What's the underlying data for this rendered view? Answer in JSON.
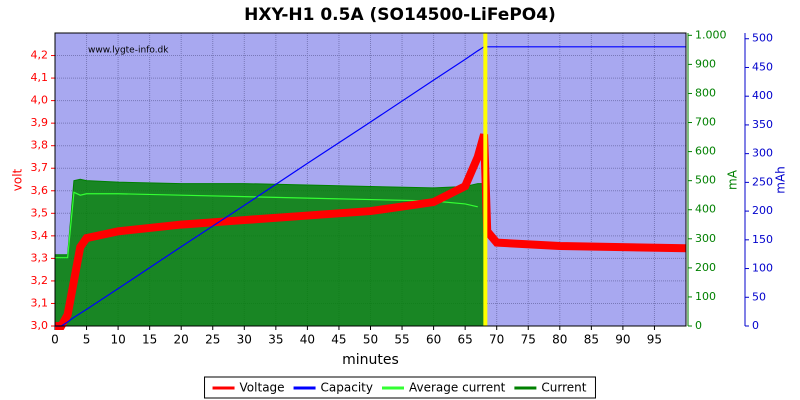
{
  "chart_data": {
    "type": "line",
    "title": "HXY-H1 0.5A (SO14500-LiFePO4)",
    "annotation": "www.lygte-info.dk",
    "xlabel": "minutes",
    "ylabel": "volt",
    "y2label": "mA",
    "y3label": "mAh",
    "x": [
      0,
      1,
      2,
      3,
      4,
      5,
      10,
      20,
      30,
      40,
      50,
      60,
      65,
      67,
      68,
      68.5,
      70,
      80,
      100
    ],
    "series": [
      {
        "name": "Voltage",
        "color": "#ff0000",
        "axis": "y",
        "values": [
          3.0,
          3.0,
          3.05,
          3.2,
          3.35,
          3.39,
          3.42,
          3.45,
          3.47,
          3.49,
          3.51,
          3.55,
          3.62,
          3.75,
          3.85,
          3.42,
          3.37,
          3.355,
          3.345
        ]
      },
      {
        "name": "Capacity",
        "color": "#0000ff",
        "axis": "y3",
        "values": [
          0,
          0,
          7,
          15,
          22,
          29,
          65,
          138,
          210,
          283,
          355,
          428,
          464,
          479,
          486,
          486,
          486,
          486,
          486
        ]
      },
      {
        "name": "Average current",
        "color": "#33ff33",
        "axis": "y2",
        "values": [
          235,
          235,
          235,
          460,
          450,
          455,
          455,
          450,
          445,
          440,
          435,
          430,
          420,
          410,
          null,
          null,
          null,
          null,
          null
        ]
      },
      {
        "name": "Current",
        "color": "#008000",
        "axis": "y2",
        "values": [
          245,
          245,
          245,
          500,
          505,
          500,
          495,
          490,
          490,
          485,
          480,
          475,
          480,
          490,
          490,
          null,
          null,
          null,
          null
        ]
      }
    ],
    "marker_x": 68.2,
    "marker_color": "#ffff00",
    "xlim": [
      0,
      100
    ],
    "xticks": [
      0,
      5,
      10,
      15,
      20,
      25,
      30,
      35,
      40,
      45,
      50,
      55,
      60,
      65,
      70,
      75,
      80,
      85,
      90,
      95
    ],
    "ylim": [
      3.0,
      4.3
    ],
    "yticks": [
      {
        "value": 3.0,
        "label": "3,0"
      },
      {
        "value": 3.1,
        "label": "3,1"
      },
      {
        "value": 3.2,
        "label": "3,2"
      },
      {
        "value": 3.3,
        "label": "3,3"
      },
      {
        "value": 3.4,
        "label": "3,4"
      },
      {
        "value": 3.5,
        "label": "3,5"
      },
      {
        "value": 3.6,
        "label": "3,6"
      },
      {
        "value": 3.7,
        "label": "3,7"
      },
      {
        "value": 3.8,
        "label": "3,8"
      },
      {
        "value": 3.9,
        "label": "3,9"
      },
      {
        "value": 4.0,
        "label": "4,0"
      },
      {
        "value": 4.1,
        "label": "4,1"
      },
      {
        "value": 4.2,
        "label": "4,2"
      }
    ],
    "y2lim": [
      0,
      1008
    ],
    "y2ticks": [
      0,
      100,
      200,
      300,
      400,
      500,
      600,
      700,
      800,
      900,
      {
        "value": 1000,
        "label": "1.000"
      }
    ],
    "y3lim": [
      0,
      510
    ],
    "y3ticks": [
      0,
      50,
      100,
      150,
      200,
      250,
      300,
      350,
      400,
      450,
      500
    ],
    "grid": true,
    "legend": "bottom"
  }
}
